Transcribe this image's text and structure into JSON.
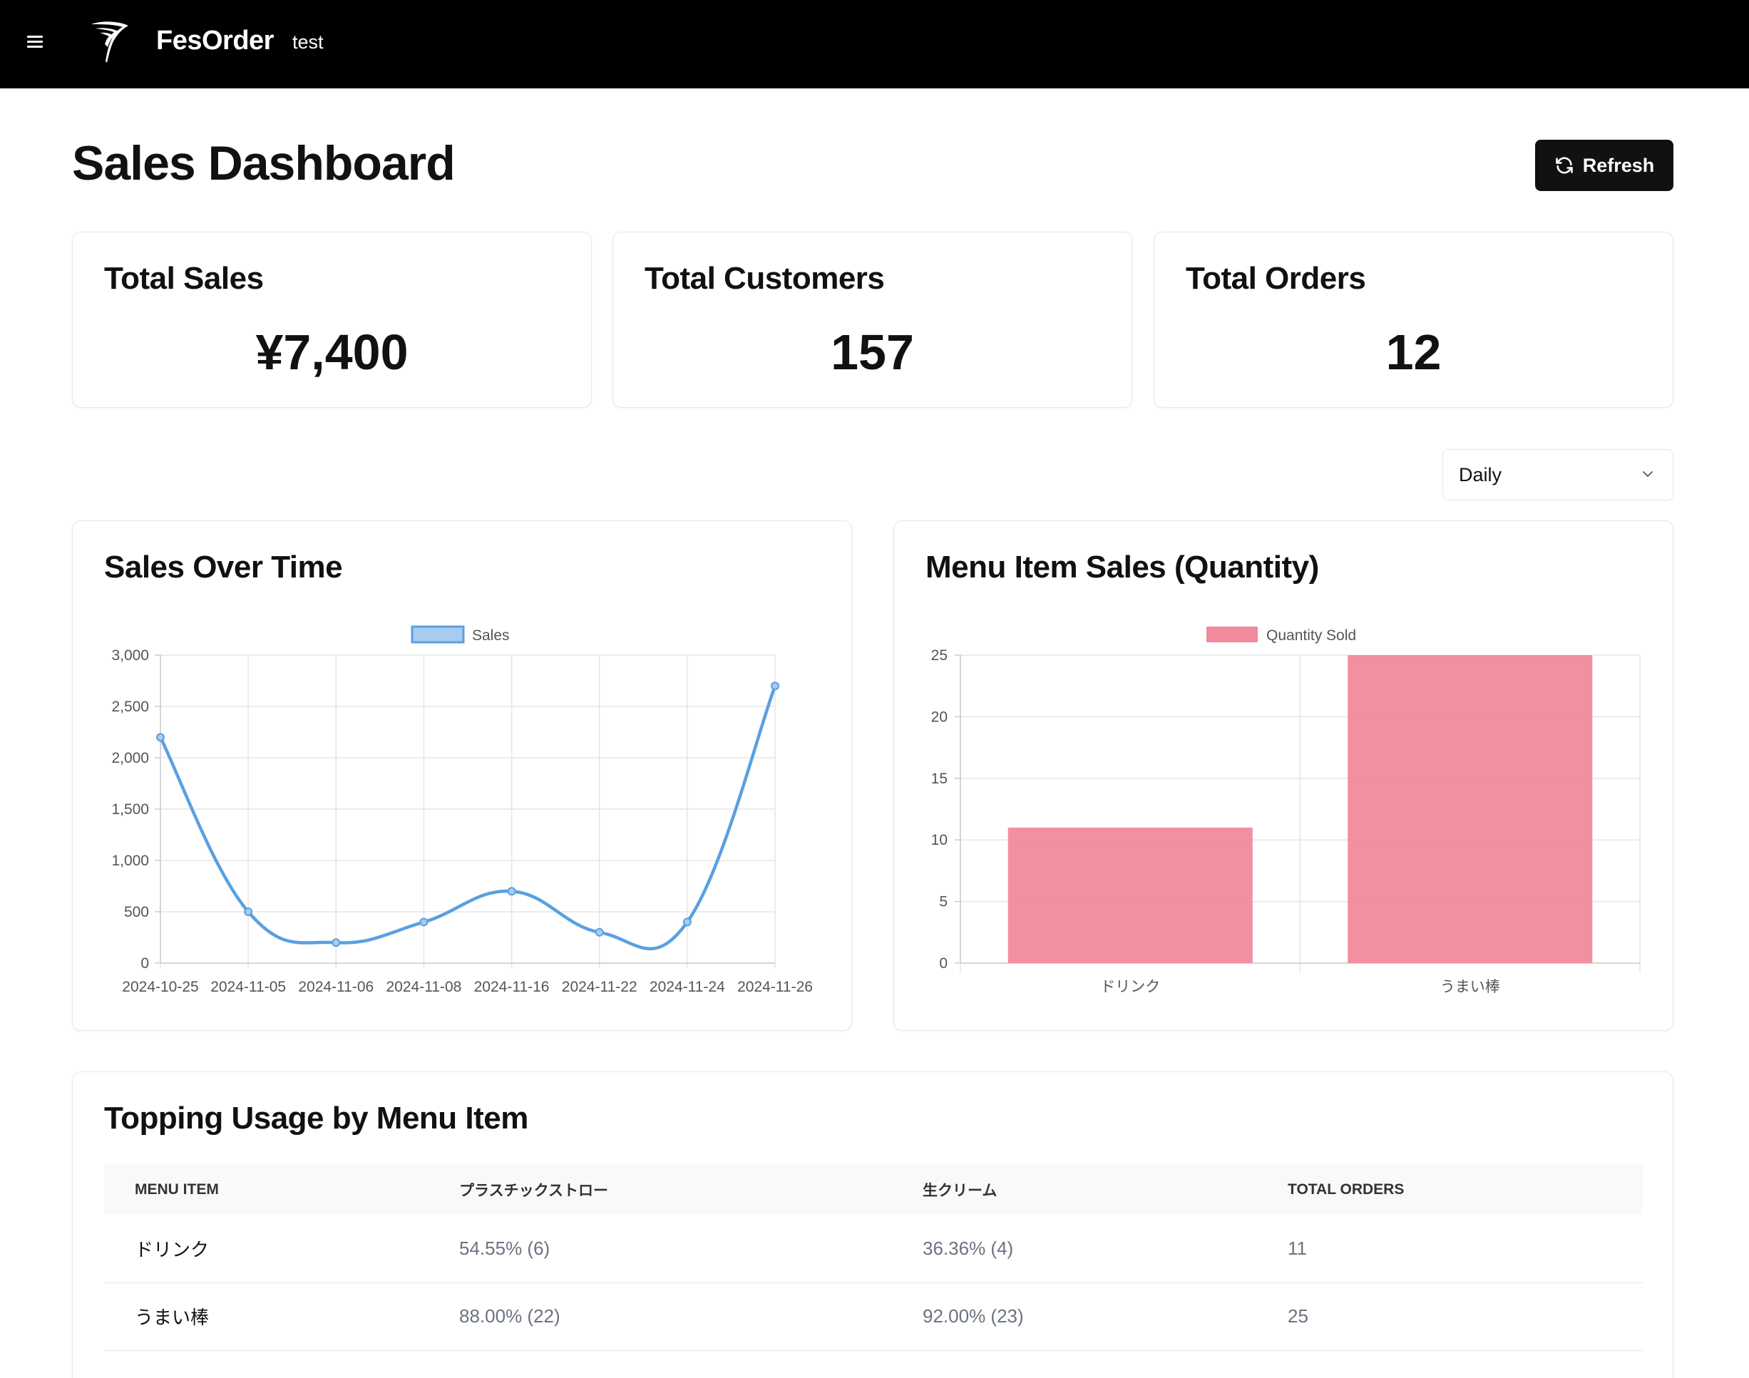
{
  "header": {
    "brand": "FesOrder",
    "store": "test"
  },
  "page": {
    "title": "Sales Dashboard",
    "refresh_label": "Refresh"
  },
  "stats": [
    {
      "title": "Total Sales",
      "value": "¥7,400"
    },
    {
      "title": "Total Customers",
      "value": "157"
    },
    {
      "title": "Total Orders",
      "value": "12"
    }
  ],
  "period_select": {
    "value": "Daily"
  },
  "chart_data": [
    {
      "type": "line",
      "title": "Sales Over Time",
      "x": [
        "2024-10-25",
        "2024-11-05",
        "2024-11-06",
        "2024-11-08",
        "2024-11-16",
        "2024-11-22",
        "2024-11-24",
        "2024-11-26"
      ],
      "series": [
        {
          "name": "Sales",
          "values": [
            2200,
            500,
            200,
            400,
            700,
            300,
            400,
            2700
          ],
          "color": "#5aa0e0"
        }
      ],
      "ylim": [
        0,
        3000
      ],
      "yticks": [
        "0",
        "500",
        "1,000",
        "1,500",
        "2,000",
        "2,500",
        "3,000"
      ],
      "legend": "top-center",
      "grid": true
    },
    {
      "type": "bar",
      "title": "Menu Item Sales (Quantity)",
      "categories": [
        "ドリンク",
        "うまい棒"
      ],
      "series": [
        {
          "name": "Quantity Sold",
          "values": [
            11,
            25
          ],
          "color": "#f08a9c"
        }
      ],
      "ylim": [
        0,
        25
      ],
      "yticks": [
        "0",
        "5",
        "10",
        "15",
        "20",
        "25"
      ],
      "legend": "top-center",
      "grid": true
    }
  ],
  "topping_table": {
    "title": "Topping Usage by Menu Item",
    "columns": [
      "MENU ITEM",
      "プラスチックストロー",
      "生クリーム",
      "TOTAL ORDERS"
    ],
    "rows": [
      [
        "ドリンク",
        "54.55% (6)",
        "36.36% (4)",
        "11"
      ],
      [
        "うまい棒",
        "88.00% (22)",
        "92.00% (23)",
        "25"
      ]
    ]
  }
}
